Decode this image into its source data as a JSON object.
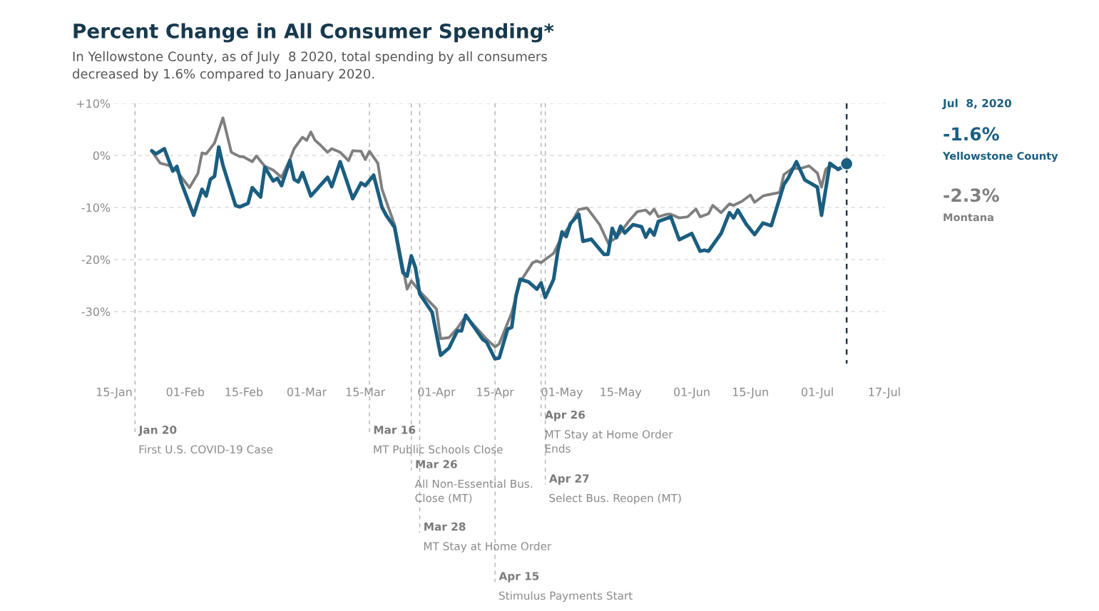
{
  "chart_data": {
    "type": "line",
    "title": "Percent Change in All Consumer Spending*",
    "subtitle": "In Yellowstone County, as of July  8 2020, total spending by all consumers\ndecreased by 1.6% compared to January 2020.",
    "xlim": [
      "2020-01-15",
      "2020-07-17"
    ],
    "xticks": [
      {
        "value": "2020-01-15",
        "label": "15-Jan"
      },
      {
        "value": "2020-02-01",
        "label": "01-Feb"
      },
      {
        "value": "2020-02-15",
        "label": "15-Feb"
      },
      {
        "value": "2020-03-01",
        "label": "01-Mar"
      },
      {
        "value": "2020-03-15",
        "label": "15-Mar"
      },
      {
        "value": "2020-04-01",
        "label": "01-Apr"
      },
      {
        "value": "2020-04-15",
        "label": "15-Apr"
      },
      {
        "value": "2020-05-01",
        "label": "01-May"
      },
      {
        "value": "2020-05-15",
        "label": "15-May"
      },
      {
        "value": "2020-06-01",
        "label": "01-Jun"
      },
      {
        "value": "2020-06-15",
        "label": "15-Jun"
      },
      {
        "value": "2020-07-01",
        "label": "01-Jul"
      },
      {
        "value": "2020-07-17",
        "label": "17-Jul"
      }
    ],
    "ylim": [
      -40,
      10
    ],
    "yticks": [
      {
        "value": 10,
        "label": "+10%"
      },
      {
        "value": 0,
        "label": "0%"
      },
      {
        "value": -10,
        "label": "-10%"
      },
      {
        "value": -20,
        "label": "-20%"
      },
      {
        "value": -30,
        "label": "-30%"
      }
    ],
    "grid": "y",
    "legend": false,
    "series": [
      {
        "name": "Yellowstone County",
        "color": "#1a5e80",
        "x": [
          "2020-01-24",
          "2020-01-25",
          "2020-01-27",
          "2020-01-29",
          "2020-01-30",
          "2020-01-31",
          "2020-02-03",
          "2020-02-05",
          "2020-02-06",
          "2020-02-07",
          "2020-02-08",
          "2020-02-09",
          "2020-02-10",
          "2020-02-13",
          "2020-02-14",
          "2020-02-16",
          "2020-02-17",
          "2020-02-19",
          "2020-02-20",
          "2020-02-22",
          "2020-02-23",
          "2020-02-24",
          "2020-02-26",
          "2020-02-27",
          "2020-02-28",
          "2020-02-29",
          "2020-03-02",
          "2020-03-06",
          "2020-03-07",
          "2020-03-09",
          "2020-03-12",
          "2020-03-14",
          "2020-03-15",
          "2020-03-17",
          "2020-03-19",
          "2020-03-20",
          "2020-03-22",
          "2020-03-24",
          "2020-03-25",
          "2020-03-26",
          "2020-03-27",
          "2020-03-28",
          "2020-03-31",
          "2020-04-02",
          "2020-04-04",
          "2020-04-06",
          "2020-04-07",
          "2020-04-08",
          "2020-04-10",
          "2020-04-12",
          "2020-04-13",
          "2020-04-15",
          "2020-04-16",
          "2020-04-18",
          "2020-04-19",
          "2020-04-20",
          "2020-04-21",
          "2020-04-23",
          "2020-04-25",
          "2020-04-26",
          "2020-04-27",
          "2020-04-29",
          "2020-04-30",
          "2020-05-01",
          "2020-05-02",
          "2020-05-03",
          "2020-05-05",
          "2020-05-06",
          "2020-05-08",
          "2020-05-11",
          "2020-05-12",
          "2020-05-13",
          "2020-05-14",
          "2020-05-15",
          "2020-05-16",
          "2020-05-18",
          "2020-05-20",
          "2020-05-21",
          "2020-05-22",
          "2020-05-23",
          "2020-05-24",
          "2020-05-27",
          "2020-05-29",
          "2020-06-01",
          "2020-06-03",
          "2020-06-04",
          "2020-06-05",
          "2020-06-08",
          "2020-06-10",
          "2020-06-11",
          "2020-06-12",
          "2020-06-14",
          "2020-06-16",
          "2020-06-18",
          "2020-06-20",
          "2020-06-23",
          "2020-06-24",
          "2020-06-26",
          "2020-06-28",
          "2020-07-01",
          "2020-07-02",
          "2020-07-04",
          "2020-07-06",
          "2020-07-08"
        ],
        "values": [
          0.9,
          0.3,
          1.3,
          -3,
          -2.1,
          -5.1,
          -11.5,
          -6.5,
          -7.8,
          -4.6,
          -4,
          1.6,
          -1.9,
          -9.6,
          -9.9,
          -9.2,
          -6.2,
          -8,
          -2.3,
          -4.9,
          -4.4,
          -5.8,
          -1,
          -4.6,
          -5.1,
          -3.3,
          -7.8,
          -4.2,
          -6,
          -1.2,
          -8.3,
          -5.3,
          -5.8,
          -3.8,
          -10,
          -11.5,
          -13.8,
          -22.5,
          -23.2,
          -19.3,
          -21.6,
          -26.6,
          -30.2,
          -38.4,
          -37,
          -33.7,
          -33.7,
          -30.7,
          -33,
          -35.3,
          -35.9,
          -39.1,
          -38.9,
          -33.4,
          -33,
          -27,
          -23.8,
          -24.3,
          -25.7,
          -24.5,
          -27.3,
          -23.8,
          -18.4,
          -14.7,
          -15.6,
          -13.1,
          -11.3,
          -16.5,
          -16.1,
          -19,
          -19,
          -14,
          -15.8,
          -13.6,
          -14.9,
          -13.3,
          -13.7,
          -15.7,
          -14.2,
          -15.3,
          -12.7,
          -11.8,
          -16.2,
          -15,
          -18.4,
          -18.2,
          -18.4,
          -15,
          -11,
          -12,
          -10.5,
          -13.2,
          -15.2,
          -13,
          -13.5,
          -5.6,
          -4.4,
          -1.2,
          -4.7,
          -6.1,
          -11.5,
          -1.5,
          -2.7,
          -1.6
        ]
      },
      {
        "name": "Montana",
        "color": "#7f7f7f",
        "x": [
          "2020-01-24",
          "2020-01-26",
          "2020-01-28",
          "2020-01-30",
          "2020-02-02",
          "2020-02-04",
          "2020-02-05",
          "2020-02-06",
          "2020-02-08",
          "2020-02-10",
          "2020-02-12",
          "2020-02-14",
          "2020-02-15",
          "2020-02-17",
          "2020-02-18",
          "2020-02-20",
          "2020-02-22",
          "2020-02-24",
          "2020-02-26",
          "2020-02-27",
          "2020-02-29",
          "2020-03-01",
          "2020-03-02",
          "2020-03-03",
          "2020-03-04",
          "2020-03-06",
          "2020-03-07",
          "2020-03-09",
          "2020-03-11",
          "2020-03-12",
          "2020-03-14",
          "2020-03-15",
          "2020-03-16",
          "2020-03-18",
          "2020-03-19",
          "2020-03-20",
          "2020-03-22",
          "2020-03-25",
          "2020-03-26",
          "2020-03-28",
          "2020-04-01",
          "2020-04-02",
          "2020-04-04",
          "2020-04-06",
          "2020-04-08",
          "2020-04-13",
          "2020-04-15",
          "2020-04-16",
          "2020-04-19",
          "2020-04-21",
          "2020-04-24",
          "2020-04-25",
          "2020-04-26",
          "2020-04-29",
          "2020-05-01",
          "2020-05-03",
          "2020-05-05",
          "2020-05-07",
          "2020-05-10",
          "2020-05-12",
          "2020-05-14",
          "2020-05-17",
          "2020-05-19",
          "2020-05-21",
          "2020-05-22",
          "2020-05-23",
          "2020-05-24",
          "2020-05-26",
          "2020-05-27",
          "2020-05-29",
          "2020-05-31",
          "2020-06-02",
          "2020-06-03",
          "2020-06-05",
          "2020-06-06",
          "2020-06-08",
          "2020-06-10",
          "2020-06-11",
          "2020-06-13",
          "2020-06-15",
          "2020-06-16",
          "2020-06-18",
          "2020-06-19",
          "2020-06-22",
          "2020-06-23",
          "2020-06-25",
          "2020-06-27",
          "2020-06-29",
          "2020-07-01",
          "2020-07-02",
          "2020-07-03",
          "2020-07-04",
          "2020-07-06",
          "2020-07-08"
        ],
        "values": [
          0.8,
          -1.5,
          -1.9,
          -3,
          -6.2,
          -3.5,
          0.5,
          0.3,
          2.4,
          7.2,
          0.6,
          -0.2,
          -0.3,
          -1.2,
          -0.1,
          -2.1,
          -2.8,
          -4.2,
          -0.8,
          1.3,
          3.5,
          2.9,
          4.5,
          2.9,
          2.2,
          0.6,
          1.3,
          0.6,
          -1,
          0.9,
          0.8,
          -0.8,
          0.8,
          -1.5,
          -6.5,
          -8.8,
          -13.3,
          -25.7,
          -24.1,
          -26.1,
          -29.5,
          -35.2,
          -35,
          -33.2,
          -30.9,
          -35.3,
          -36.8,
          -36.2,
          -30.2,
          -24.3,
          -20.6,
          -20.3,
          -20.6,
          -18.8,
          -15.6,
          -13.3,
          -10.4,
          -10.1,
          -13.3,
          -16.8,
          -15.8,
          -12.6,
          -10.8,
          -10.5,
          -11.3,
          -10.3,
          -11.8,
          -11.3,
          -11.3,
          -12,
          -11.8,
          -10.3,
          -11.8,
          -11.2,
          -9.6,
          -11,
          -9.3,
          -9.6,
          -8.8,
          -7.6,
          -9,
          -7.8,
          -7.6,
          -7.1,
          -3.7,
          -2.5,
          -2.5,
          -2,
          -3.4,
          -6.1,
          -2.7,
          -2,
          -2.5,
          -2.3
        ]
      },
      {
        "type": "scatter",
        "color": "#1a5e80",
        "x": [
          "2020-07-08"
        ],
        "values": [
          -1.6
        ]
      }
    ],
    "annotations": [
      "Jul  8, 2020",
      "-1.6%",
      "-2.3%"
    ],
    "ref_lines": [
      {
        "axis": "x",
        "value": "2020-01-20",
        "label": "Jan 20\nFirst U.S. COVID-19 Case",
        "color": "#b0b0b0",
        "line_style": "dashed"
      },
      {
        "axis": "x",
        "value": "2020-03-16",
        "label": "Mar 16\nMT Public Schools Close",
        "color": "#b0b0b0",
        "line_style": "dashed"
      },
      {
        "axis": "x",
        "value": "2020-03-26",
        "label": "Mar 26\nAll Non-Essential Bus.\nClose (MT)",
        "color": "#b0b0b0",
        "line_style": "dashed"
      },
      {
        "axis": "x",
        "value": "2020-03-28",
        "label": "Mar 28\nMT Stay at Home Order",
        "color": "#b0b0b0",
        "line_style": "dashed"
      },
      {
        "axis": "x",
        "value": "2020-04-15",
        "label": "Apr 15\nStimulus Payments Start",
        "color": "#b0b0b0",
        "line_style": "dashed"
      },
      {
        "axis": "x",
        "value": "2020-04-26",
        "label": "Apr 26\nMT Stay at Home Order\nEnds",
        "color": "#b0b0b0",
        "line_style": "dashed"
      },
      {
        "axis": "x",
        "value": "2020-04-27",
        "label": "Apr 27\nSelect Bus. Reopen (MT)",
        "color": "#b0b0b0",
        "line_style": "dashed"
      },
      {
        "axis": "x",
        "value": "2020-07-08",
        "color": "#1b3a4b",
        "line_style": "dashed"
      }
    ]
  }
}
